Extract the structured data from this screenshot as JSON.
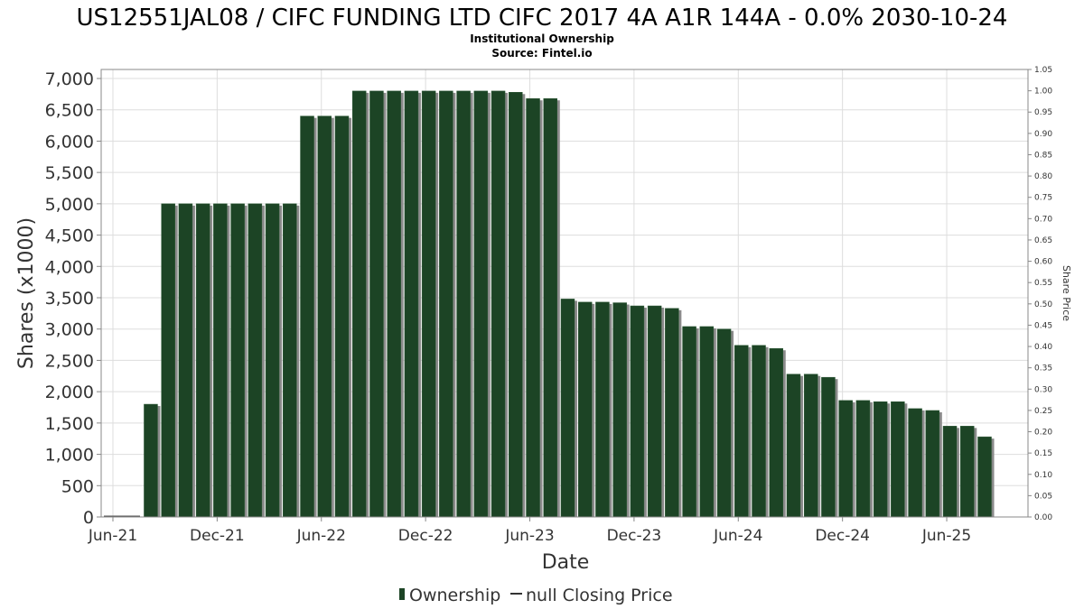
{
  "chart_data": {
    "type": "bar",
    "title": "US12551JAL08 / CIFC FUNDING LTD CIFC 2017 4A A1R 144A - 0.0% 2030-10-24",
    "subtitle": "Institutional Ownership",
    "source": "Source: Fintel.io",
    "xlabel": "Date",
    "ylabel": "Shares (x1000)",
    "y2label": "Share Price",
    "ylim": [
      0,
      7000
    ],
    "y2lim": [
      0,
      1.05
    ],
    "grid": true,
    "legend_position": "bottom",
    "legend": [
      "Ownership",
      "null Closing Price"
    ],
    "x_ticks": [
      "Jun-21",
      "Dec-21",
      "Jun-22",
      "Dec-22",
      "Jun-23",
      "Dec-23",
      "Jun-24",
      "Dec-24",
      "Jun-25"
    ],
    "y_ticks": [
      "0",
      "500",
      "1,000",
      "1,500",
      "2,000",
      "2,500",
      "3,000",
      "3,500",
      "4,000",
      "4,500",
      "5,000",
      "5,500",
      "6,000",
      "6,500",
      "7,000"
    ],
    "y2_ticks": [
      "0.00",
      "0.05",
      "0.10",
      "0.15",
      "0.20",
      "0.25",
      "0.30",
      "0.35",
      "0.40",
      "0.45",
      "0.50",
      "0.55",
      "0.60",
      "0.65",
      "0.70",
      "0.75",
      "0.80",
      "0.85",
      "0.90",
      "0.95",
      "1.00",
      "1.05"
    ],
    "first_month": "Aug-21",
    "series": [
      {
        "name": "Ownership",
        "color": "#1c4425",
        "values": [
          1800,
          5000,
          5000,
          5000,
          5000,
          5000,
          5000,
          5000,
          5000,
          6400,
          6400,
          6400,
          6800,
          6800,
          6800,
          6800,
          6800,
          6800,
          6800,
          6800,
          6800,
          6780,
          6680,
          6680,
          3480,
          3430,
          3430,
          3420,
          3370,
          3370,
          3330,
          3040,
          3040,
          3000,
          2740,
          2740,
          2690,
          2280,
          2280,
          2230,
          1860,
          1860,
          1840,
          1840,
          1730,
          1700,
          1450,
          1450,
          1280
        ]
      }
    ]
  }
}
